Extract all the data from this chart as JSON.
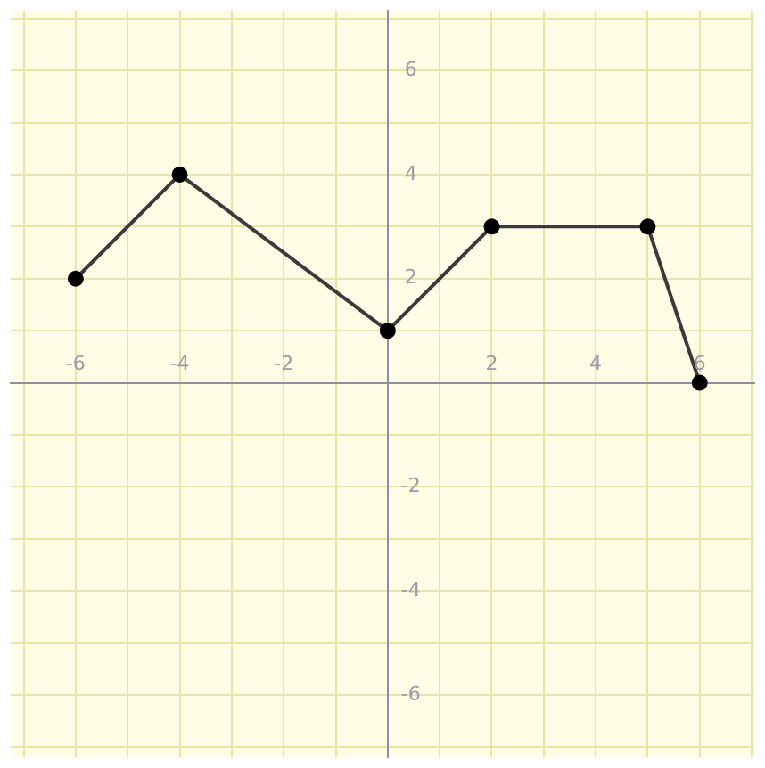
{
  "chart_data": {
    "type": "line",
    "x": [
      -6,
      -4,
      0,
      2,
      5,
      6
    ],
    "values": [
      2,
      4,
      1,
      3,
      3,
      0
    ],
    "color": "#3a3a3a",
    "marker": "circle",
    "line_style": "solid",
    "grid": true,
    "xlim": [
      -7.25,
      7.05
    ],
    "ylim": [
      -7.2,
      7.15
    ],
    "xticks": [
      {
        "value": -7,
        "label": null
      },
      {
        "value": -6,
        "label": "-6"
      },
      {
        "value": -5,
        "label": null
      },
      {
        "value": -4,
        "label": "-4"
      },
      {
        "value": -3,
        "label": null
      },
      {
        "value": -2,
        "label": "-2"
      },
      {
        "value": -1,
        "label": null
      },
      {
        "value": 0,
        "label": null
      },
      {
        "value": 1,
        "label": null
      },
      {
        "value": 2,
        "label": "2"
      },
      {
        "value": 3,
        "label": null
      },
      {
        "value": 4,
        "label": "4"
      },
      {
        "value": 5,
        "label": null
      },
      {
        "value": 6,
        "label": "6"
      },
      {
        "value": 7,
        "label": null
      }
    ],
    "yticks": [
      {
        "value": -7,
        "label": null
      },
      {
        "value": -6,
        "label": "-6"
      },
      {
        "value": -5,
        "label": null
      },
      {
        "value": -4,
        "label": "-4"
      },
      {
        "value": -3,
        "label": null
      },
      {
        "value": -2,
        "label": "-2"
      },
      {
        "value": -1,
        "label": null
      },
      {
        "value": 0,
        "label": null
      },
      {
        "value": 1,
        "label": null
      },
      {
        "value": 2,
        "label": "2"
      },
      {
        "value": 3,
        "label": null
      },
      {
        "value": 4,
        "label": "4"
      },
      {
        "value": 5,
        "label": null
      },
      {
        "value": 6,
        "label": "6"
      },
      {
        "value": 7,
        "label": null
      }
    ]
  }
}
